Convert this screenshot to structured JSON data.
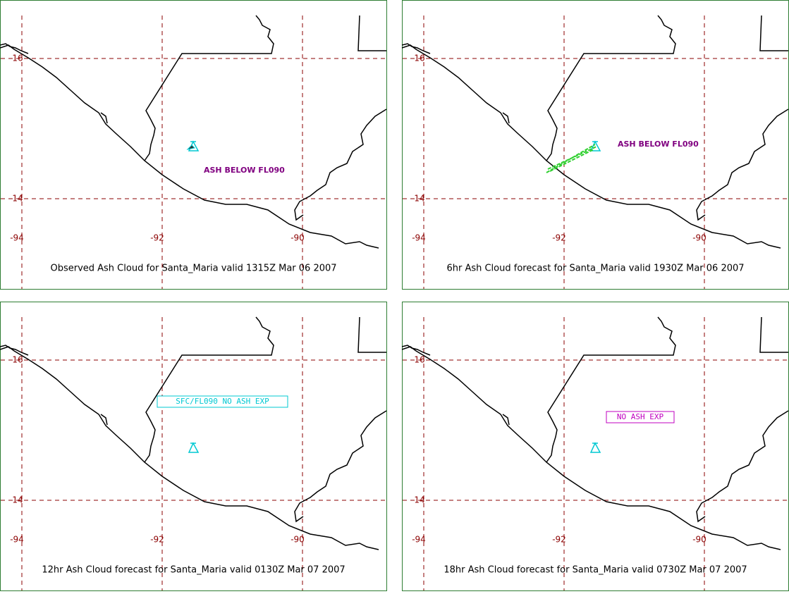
{
  "panels": [
    {
      "caption": "Observed Ash Cloud for Santa_Maria valid 1315Z Mar 06 2007",
      "annotation": "ASH BELOW FL090"
    },
    {
      "caption": "6hr Ash Cloud forecast for Santa_Maria valid 1930Z Mar 06 2007",
      "annotation": "ASH BELOW FL090"
    },
    {
      "caption": "12hr Ash Cloud forecast for Santa_Maria valid 0130Z Mar 07 2007",
      "annotation": "SFC/FL090 NO ASH EXP"
    },
    {
      "caption": "18hr Ash Cloud forecast for Santa_Maria valid 0730Z Mar 07 2007",
      "annotation": "NO ASH EXP"
    }
  ],
  "latitudes": [
    16,
    14
  ],
  "longitudes": [
    -94,
    -92,
    -90
  ]
}
